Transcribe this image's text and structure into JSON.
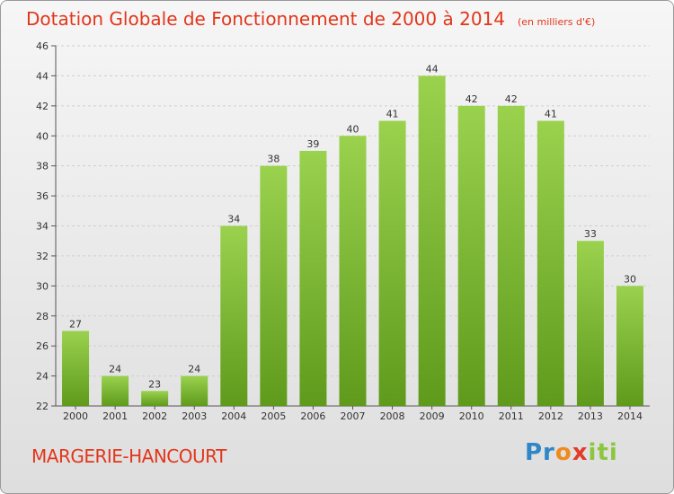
{
  "chart_data": {
    "type": "bar",
    "title": "Dotation Globale de Fonctionnement de 2000 à 2014",
    "subtitle": "(en milliers d'€)",
    "categories": [
      "2000",
      "2001",
      "2002",
      "2003",
      "2004",
      "2005",
      "2006",
      "2007",
      "2008",
      "2009",
      "2010",
      "2011",
      "2012",
      "2013",
      "2014"
    ],
    "values": [
      27,
      24,
      23,
      24,
      34,
      38,
      39,
      40,
      41,
      44,
      42,
      42,
      41,
      33,
      30
    ],
    "ylim": [
      22,
      46
    ],
    "yticks": [
      22,
      24,
      26,
      28,
      30,
      32,
      34,
      36,
      38,
      40,
      42,
      44,
      46
    ],
    "grid": "dashed horizontal",
    "bar_color_top": "#9ad24e",
    "bar_color_bottom": "#5f9a1c"
  },
  "commune": "MARGERIE-HANCOURT",
  "logo": {
    "p1": "Pr",
    "p2": "o",
    "p3": "x",
    "p4": "iti"
  }
}
